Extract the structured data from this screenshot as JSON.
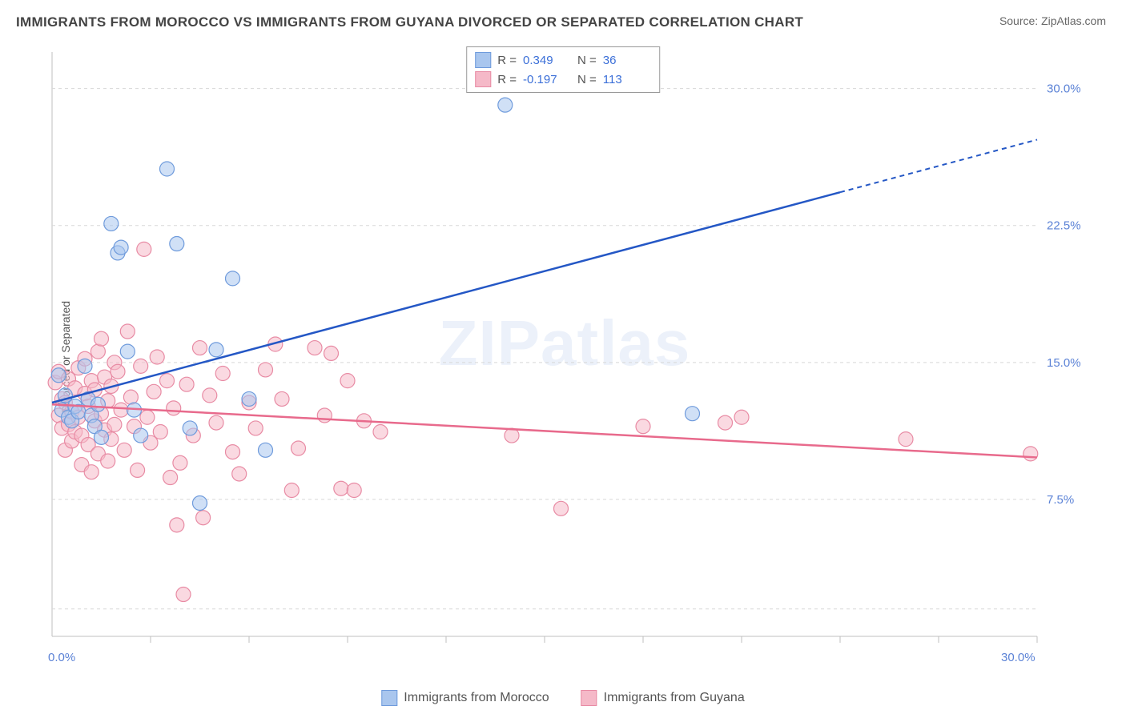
{
  "title": "IMMIGRANTS FROM MOROCCO VS IMMIGRANTS FROM GUYANA DIVORCED OR SEPARATED CORRELATION CHART",
  "source": "Source: ZipAtlas.com",
  "y_axis_label": "Divorced or Separated",
  "watermark_bold": "ZIP",
  "watermark_rest": "atlas",
  "chart": {
    "type": "scatter",
    "xlim": [
      0,
      30
    ],
    "ylim": [
      0,
      32
    ],
    "x_tick_labels": {
      "0": "0.0%",
      "30": "30.0%"
    },
    "y_tick_labels": {
      "7.5": "7.5%",
      "15": "15.0%",
      "22.5": "22.5%",
      "30": "30.0%"
    },
    "x_gridlines": [
      3,
      6,
      9,
      12,
      15,
      18,
      21,
      24,
      27,
      30
    ],
    "y_gridlines": [
      1.5,
      7.5,
      15,
      22.5,
      30
    ],
    "grid_color": "#d8d8d8",
    "background_color": "#ffffff",
    "plot_border_color": "#bfbfbf",
    "series": [
      {
        "name": "Immigrants from Morocco",
        "color_fill": "#a9c6ee",
        "color_stroke": "#6f9bdc",
        "r_value": "0.349",
        "n_value": "36",
        "marker_radius": 9,
        "trend": {
          "x1": 0,
          "y1": 12.8,
          "x2": 30,
          "y2": 27.2,
          "solid_end_x": 24,
          "color": "#2457c5"
        },
        "points": [
          [
            0.2,
            14.3
          ],
          [
            0.3,
            12.4
          ],
          [
            0.4,
            13.2
          ],
          [
            0.5,
            12.0
          ],
          [
            0.6,
            11.8
          ],
          [
            0.7,
            12.6
          ],
          [
            0.8,
            12.3
          ],
          [
            1.0,
            14.8
          ],
          [
            1.1,
            13.0
          ],
          [
            1.2,
            12.1
          ],
          [
            1.3,
            11.5
          ],
          [
            1.4,
            12.7
          ],
          [
            1.5,
            10.9
          ],
          [
            1.8,
            22.6
          ],
          [
            2.0,
            21.0
          ],
          [
            2.1,
            21.3
          ],
          [
            2.3,
            15.6
          ],
          [
            2.5,
            12.4
          ],
          [
            2.7,
            11.0
          ],
          [
            3.5,
            25.6
          ],
          [
            3.8,
            21.5
          ],
          [
            4.2,
            11.4
          ],
          [
            4.5,
            7.3
          ],
          [
            5.0,
            15.7
          ],
          [
            5.5,
            19.6
          ],
          [
            6.0,
            13.0
          ],
          [
            6.5,
            10.2
          ],
          [
            13.8,
            29.1
          ],
          [
            19.5,
            12.2
          ]
        ]
      },
      {
        "name": "Immigrants from Guyana",
        "color_fill": "#f5b9c8",
        "color_stroke": "#e88ba4",
        "r_value": "-0.197",
        "n_value": "113",
        "marker_radius": 9,
        "trend": {
          "x1": 0,
          "y1": 12.7,
          "x2": 30,
          "y2": 9.8,
          "solid_end_x": 30,
          "color": "#e86a8c"
        },
        "points": [
          [
            0.1,
            13.9
          ],
          [
            0.2,
            12.1
          ],
          [
            0.2,
            14.5
          ],
          [
            0.3,
            11.4
          ],
          [
            0.3,
            13.0
          ],
          [
            0.4,
            10.2
          ],
          [
            0.4,
            12.8
          ],
          [
            0.5,
            11.6
          ],
          [
            0.5,
            14.1
          ],
          [
            0.6,
            12.3
          ],
          [
            0.6,
            10.7
          ],
          [
            0.7,
            13.6
          ],
          [
            0.7,
            11.2
          ],
          [
            0.8,
            12.0
          ],
          [
            0.8,
            14.7
          ],
          [
            0.9,
            11.0
          ],
          [
            0.9,
            9.4
          ],
          [
            1.0,
            13.3
          ],
          [
            1.0,
            15.2
          ],
          [
            1.1,
            10.5
          ],
          [
            1.1,
            12.6
          ],
          [
            1.2,
            14.0
          ],
          [
            1.2,
            9.0
          ],
          [
            1.3,
            11.8
          ],
          [
            1.3,
            13.5
          ],
          [
            1.4,
            15.6
          ],
          [
            1.4,
            10.0
          ],
          [
            1.5,
            12.2
          ],
          [
            1.5,
            16.3
          ],
          [
            1.6,
            11.3
          ],
          [
            1.6,
            14.2
          ],
          [
            1.7,
            9.6
          ],
          [
            1.7,
            12.9
          ],
          [
            1.8,
            10.8
          ],
          [
            1.8,
            13.7
          ],
          [
            1.9,
            15.0
          ],
          [
            1.9,
            11.6
          ],
          [
            2.0,
            14.5
          ],
          [
            2.1,
            12.4
          ],
          [
            2.2,
            10.2
          ],
          [
            2.3,
            16.7
          ],
          [
            2.4,
            13.1
          ],
          [
            2.5,
            11.5
          ],
          [
            2.6,
            9.1
          ],
          [
            2.7,
            14.8
          ],
          [
            2.8,
            21.2
          ],
          [
            2.9,
            12.0
          ],
          [
            3.0,
            10.6
          ],
          [
            3.1,
            13.4
          ],
          [
            3.2,
            15.3
          ],
          [
            3.3,
            11.2
          ],
          [
            3.5,
            14.0
          ],
          [
            3.6,
            8.7
          ],
          [
            3.7,
            12.5
          ],
          [
            3.8,
            6.1
          ],
          [
            3.9,
            9.5
          ],
          [
            4.0,
            2.3
          ],
          [
            4.1,
            13.8
          ],
          [
            4.3,
            11.0
          ],
          [
            4.5,
            15.8
          ],
          [
            4.6,
            6.5
          ],
          [
            4.8,
            13.2
          ],
          [
            5.0,
            11.7
          ],
          [
            5.2,
            14.4
          ],
          [
            5.5,
            10.1
          ],
          [
            5.7,
            8.9
          ],
          [
            6.0,
            12.8
          ],
          [
            6.2,
            11.4
          ],
          [
            6.5,
            14.6
          ],
          [
            6.8,
            16.0
          ],
          [
            7.0,
            13.0
          ],
          [
            7.3,
            8.0
          ],
          [
            7.5,
            10.3
          ],
          [
            8.0,
            15.8
          ],
          [
            8.3,
            12.1
          ],
          [
            8.5,
            15.5
          ],
          [
            8.8,
            8.1
          ],
          [
            9.0,
            14.0
          ],
          [
            9.2,
            8.0
          ],
          [
            9.5,
            11.8
          ],
          [
            10.0,
            11.2
          ],
          [
            14.0,
            11.0
          ],
          [
            15.5,
            7.0
          ],
          [
            18.0,
            11.5
          ],
          [
            20.5,
            11.7
          ],
          [
            21.0,
            12.0
          ],
          [
            26.0,
            10.8
          ],
          [
            29.8,
            10.0
          ]
        ]
      }
    ]
  },
  "legend_top": {
    "r_label": "R  =",
    "n_label": "N  ="
  },
  "legend_bottom_items": [
    {
      "label": "Immigrants from Morocco",
      "fill": "#a9c6ee",
      "stroke": "#6f9bdc"
    },
    {
      "label": "Immigrants from Guyana",
      "fill": "#f5b9c8",
      "stroke": "#e88ba4"
    }
  ]
}
